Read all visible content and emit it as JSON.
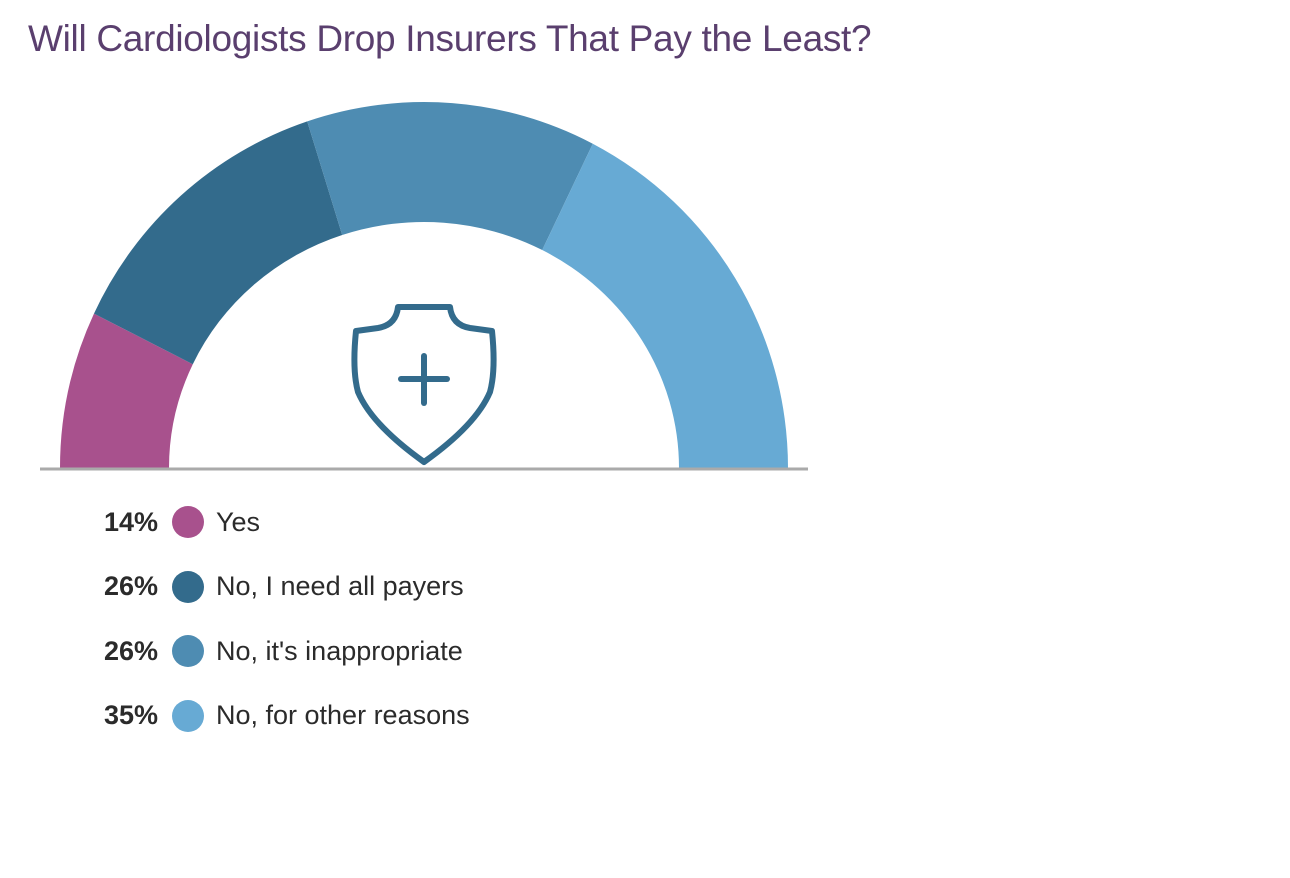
{
  "title": "Will Cardiologists Drop Insurers That Pay the Least?",
  "icon": "shield-plus-icon",
  "colors": {
    "title": "#5a3f6e",
    "baseline": "#aaaaaa",
    "icon": "#336b8c"
  },
  "legend": [
    {
      "pct": "14%",
      "label": "Yes",
      "color": "#a8518d"
    },
    {
      "pct": "26%",
      "label": "No, I need all payers",
      "color": "#336b8c"
    },
    {
      "pct": "26%",
      "label": "No, it's inappropriate",
      "color": "#4e8cb2"
    },
    {
      "pct": "35%",
      "label": "No, for other reasons",
      "color": "#67aad4"
    }
  ],
  "chart_data": {
    "type": "pie",
    "subtype": "semicircle-donut",
    "title": "Will Cardiologists Drop Insurers That Pay the Least?",
    "categories": [
      "Yes",
      "No, I need all payers",
      "No, it's inappropriate",
      "No, for other reasons"
    ],
    "values": [
      14,
      26,
      26,
      35
    ],
    "unit": "%",
    "colors": [
      "#a8518d",
      "#336b8c",
      "#4e8cb2",
      "#67aad4"
    ],
    "legend_position": "bottom-left",
    "center_icon": "shield with plus sign"
  }
}
